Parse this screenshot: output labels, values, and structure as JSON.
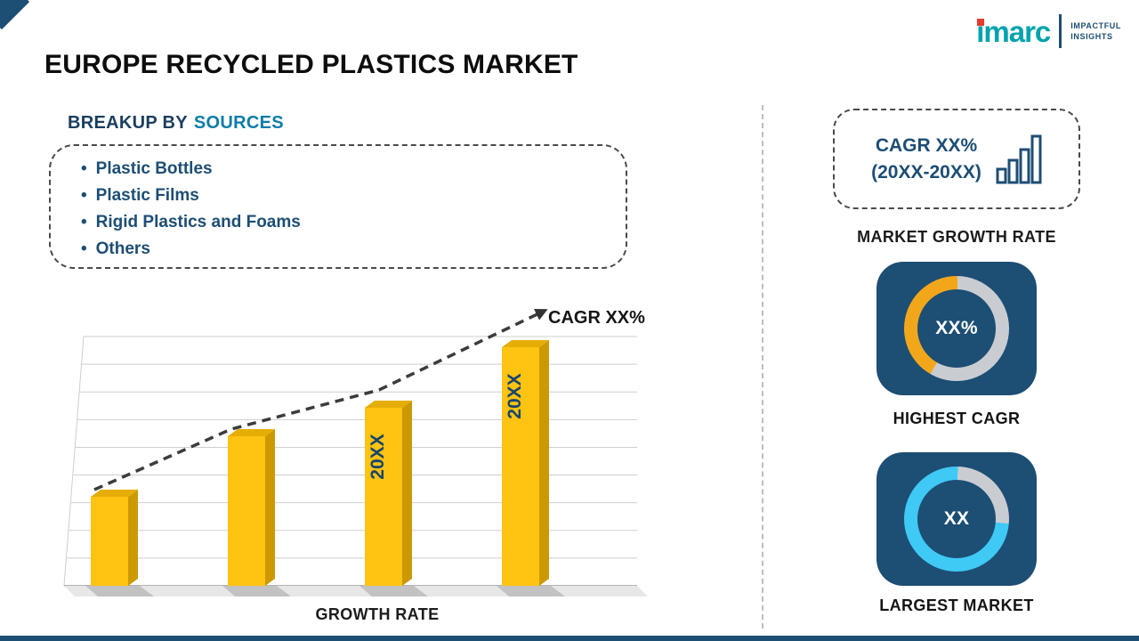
{
  "brand": {
    "logo": "imarc",
    "tagline1": "IMPACTFUL",
    "tagline2": "INSIGHTS"
  },
  "page": {
    "title": "EUROPE RECYCLED PLASTICS MARKET"
  },
  "breakup": {
    "heading_prefix": "BREAKUP BY",
    "heading_highlight": "SOURCES",
    "bullet": "•",
    "items": [
      "Plastic Bottles",
      "Plastic Films",
      "Rigid Plastics and Foams",
      "Others"
    ]
  },
  "right_panel": {
    "growth_box": {
      "line1": "CAGR XX%",
      "line2": "(20XX-20XX)"
    },
    "growth_label": "MARKET GROWTH RATE"
  },
  "chart_data": [
    {
      "type": "bar",
      "title": "",
      "categories": [
        "",
        "",
        "20XX",
        "20XX"
      ],
      "values": [
        25,
        42,
        50,
        67
      ],
      "ylim": [
        0,
        70
      ],
      "xlabel": "GROWTH RATE",
      "ylabel": "",
      "grid": "horizontal",
      "legend": "none",
      "trend_label": "CAGR XX%",
      "trend": "dashed ascending arrow",
      "bar_color": "#FFC312"
    },
    {
      "type": "pie",
      "donut": true,
      "title": "HIGHEST CAGR",
      "center_label": "XX%",
      "start_deg": 210,
      "slices": [
        {
          "name": "highlight",
          "value": 42,
          "color": "#F2A71B"
        },
        {
          "name": "remainder",
          "value": 58,
          "color": "#C9CDD2"
        }
      ]
    },
    {
      "type": "pie",
      "donut": true,
      "title": "LARGEST MARKET",
      "center_label": "XX",
      "start_deg": 95,
      "slices": [
        {
          "name": "highlight",
          "value": 74,
          "color": "#3FC9F5"
        },
        {
          "name": "remainder",
          "value": 26,
          "color": "#C9CDD2"
        }
      ]
    }
  ],
  "colors": {
    "navy": "#1D4E74",
    "heading_navy": "#1B3E5F",
    "teal": "#0E7CA8",
    "gold": "#FFC312",
    "logo_teal": "#00A3AD",
    "accent_red": "#E63B2E",
    "ring_gray": "#C9CDD2"
  }
}
